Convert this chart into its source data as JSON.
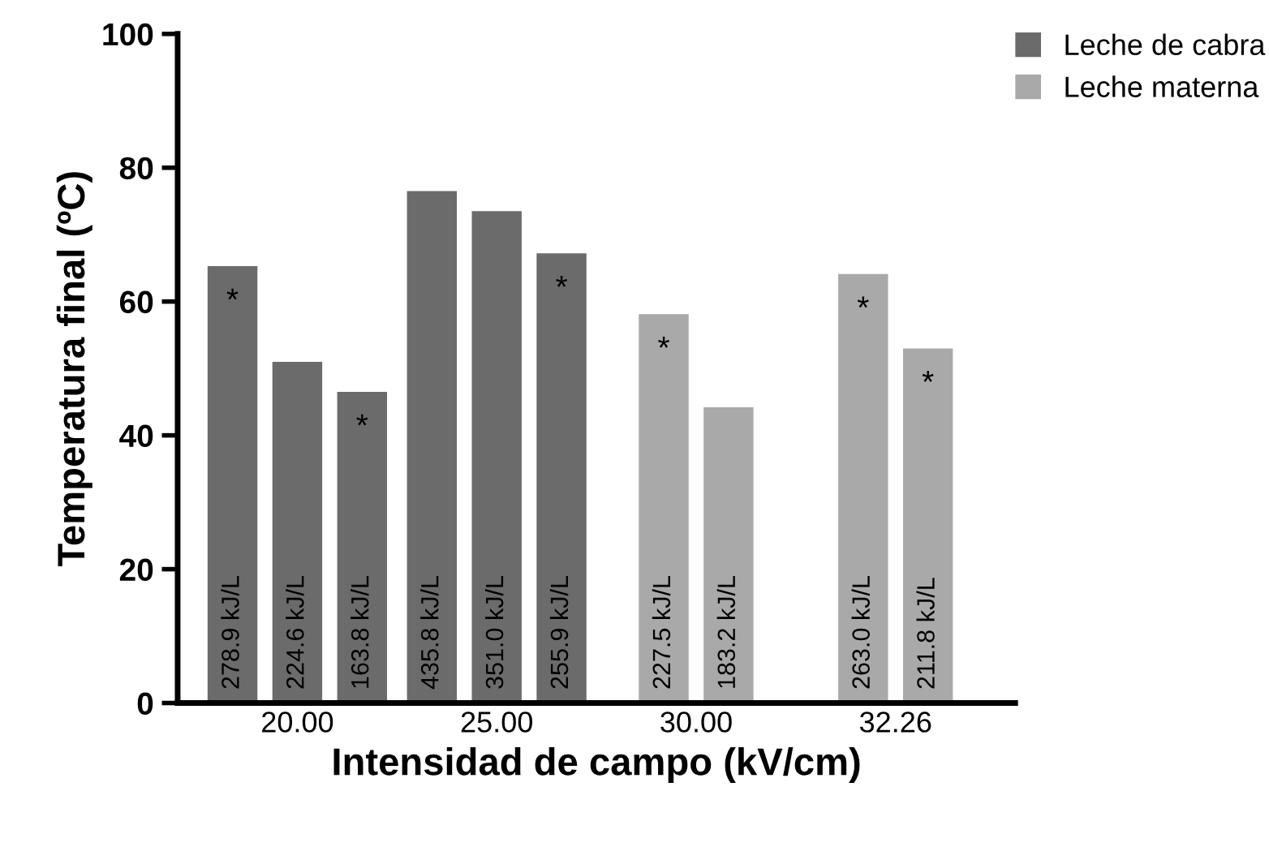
{
  "chart_data": {
    "type": "bar",
    "xlabel": "Intensidad de campo (kV/cm)",
    "ylabel": "Temperatura final (ºC)",
    "categories": [
      "20.00",
      "25.00",
      "30.00",
      "32.26"
    ],
    "series": [
      {
        "name": "Leche de cabra",
        "color": "#6b6b6b",
        "values": [
          65.3,
          76.5,
          null,
          null
        ],
        "value_labels": [
          "*",
          null,
          null,
          null
        ]
      },
      {
        "color": "#6b6b6b",
        "values": [
          51.0,
          73.5,
          null,
          null
        ],
        "value_labels": [
          null,
          null,
          null,
          null
        ]
      },
      {
        "color": "#6b6b6b",
        "values": [
          46.5,
          67.2,
          null,
          null
        ],
        "value_labels": [
          "*",
          "*",
          null,
          null
        ]
      },
      {
        "name": "Leche materna",
        "color": "#a9a9a9",
        "values": [
          null,
          null,
          58.1,
          64.1
        ],
        "value_labels": [
          null,
          null,
          "*",
          "*"
        ]
      },
      {
        "color": "#a9a9a9",
        "values": [
          null,
          null,
          44.2,
          53.0
        ],
        "value_labels": [
          null,
          null,
          null,
          "*"
        ]
      }
    ],
    "annotations": [
      "278.9 kJ/L",
      "224.6 kJ/L",
      "163.8 kJ/L",
      "435.8 kJ/L",
      "351.0 kJ/L",
      "255.9 kJ/L",
      "227.5 kJ/L",
      "183.2 kJ/L",
      "263.0 kJ/L",
      "211.8 kJ/L"
    ],
    "ylim": [
      0,
      100
    ],
    "yticks": [
      0,
      20,
      40,
      60,
      80,
      100
    ],
    "grid": false,
    "legend": "top right"
  }
}
